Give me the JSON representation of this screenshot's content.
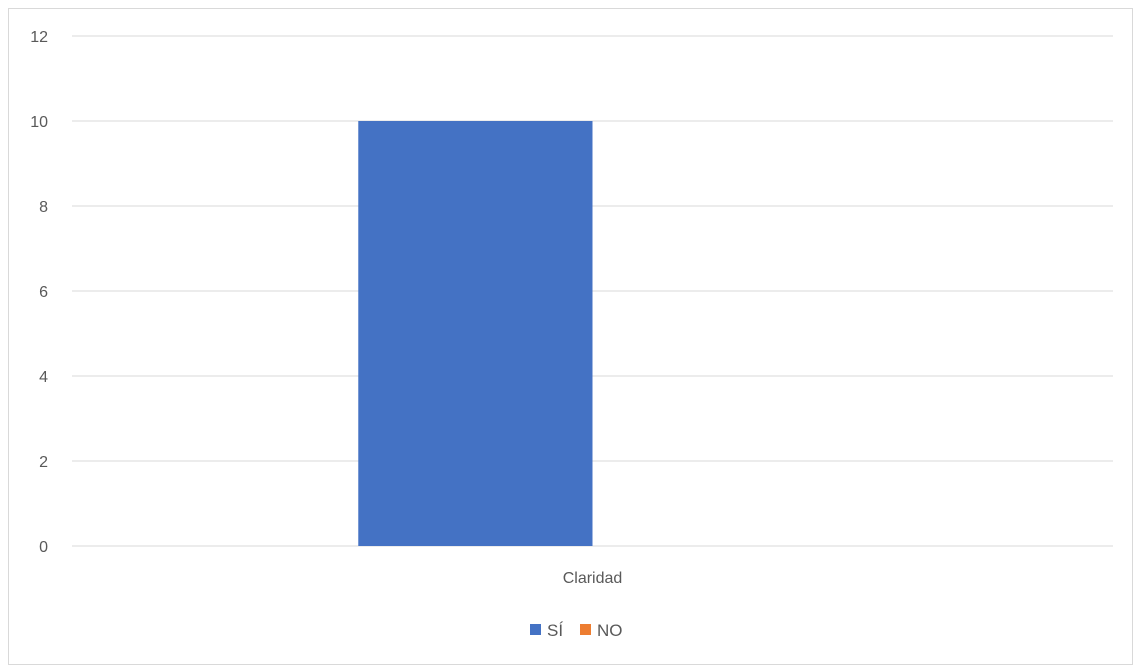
{
  "chart_data": {
    "type": "bar",
    "categories": [
      "Claridad"
    ],
    "series": [
      {
        "name": "SÍ",
        "values": [
          10
        ],
        "color": "#4472C4"
      },
      {
        "name": "NO",
        "values": [
          0
        ],
        "color": "#ED7D31"
      }
    ],
    "yticks": [
      "0",
      "2",
      "4",
      "6",
      "8",
      "10",
      "12"
    ],
    "ylim": [
      0,
      12
    ],
    "grid": true,
    "legend_position": "bottom",
    "title": "",
    "xlabel": "",
    "ylabel": ""
  }
}
